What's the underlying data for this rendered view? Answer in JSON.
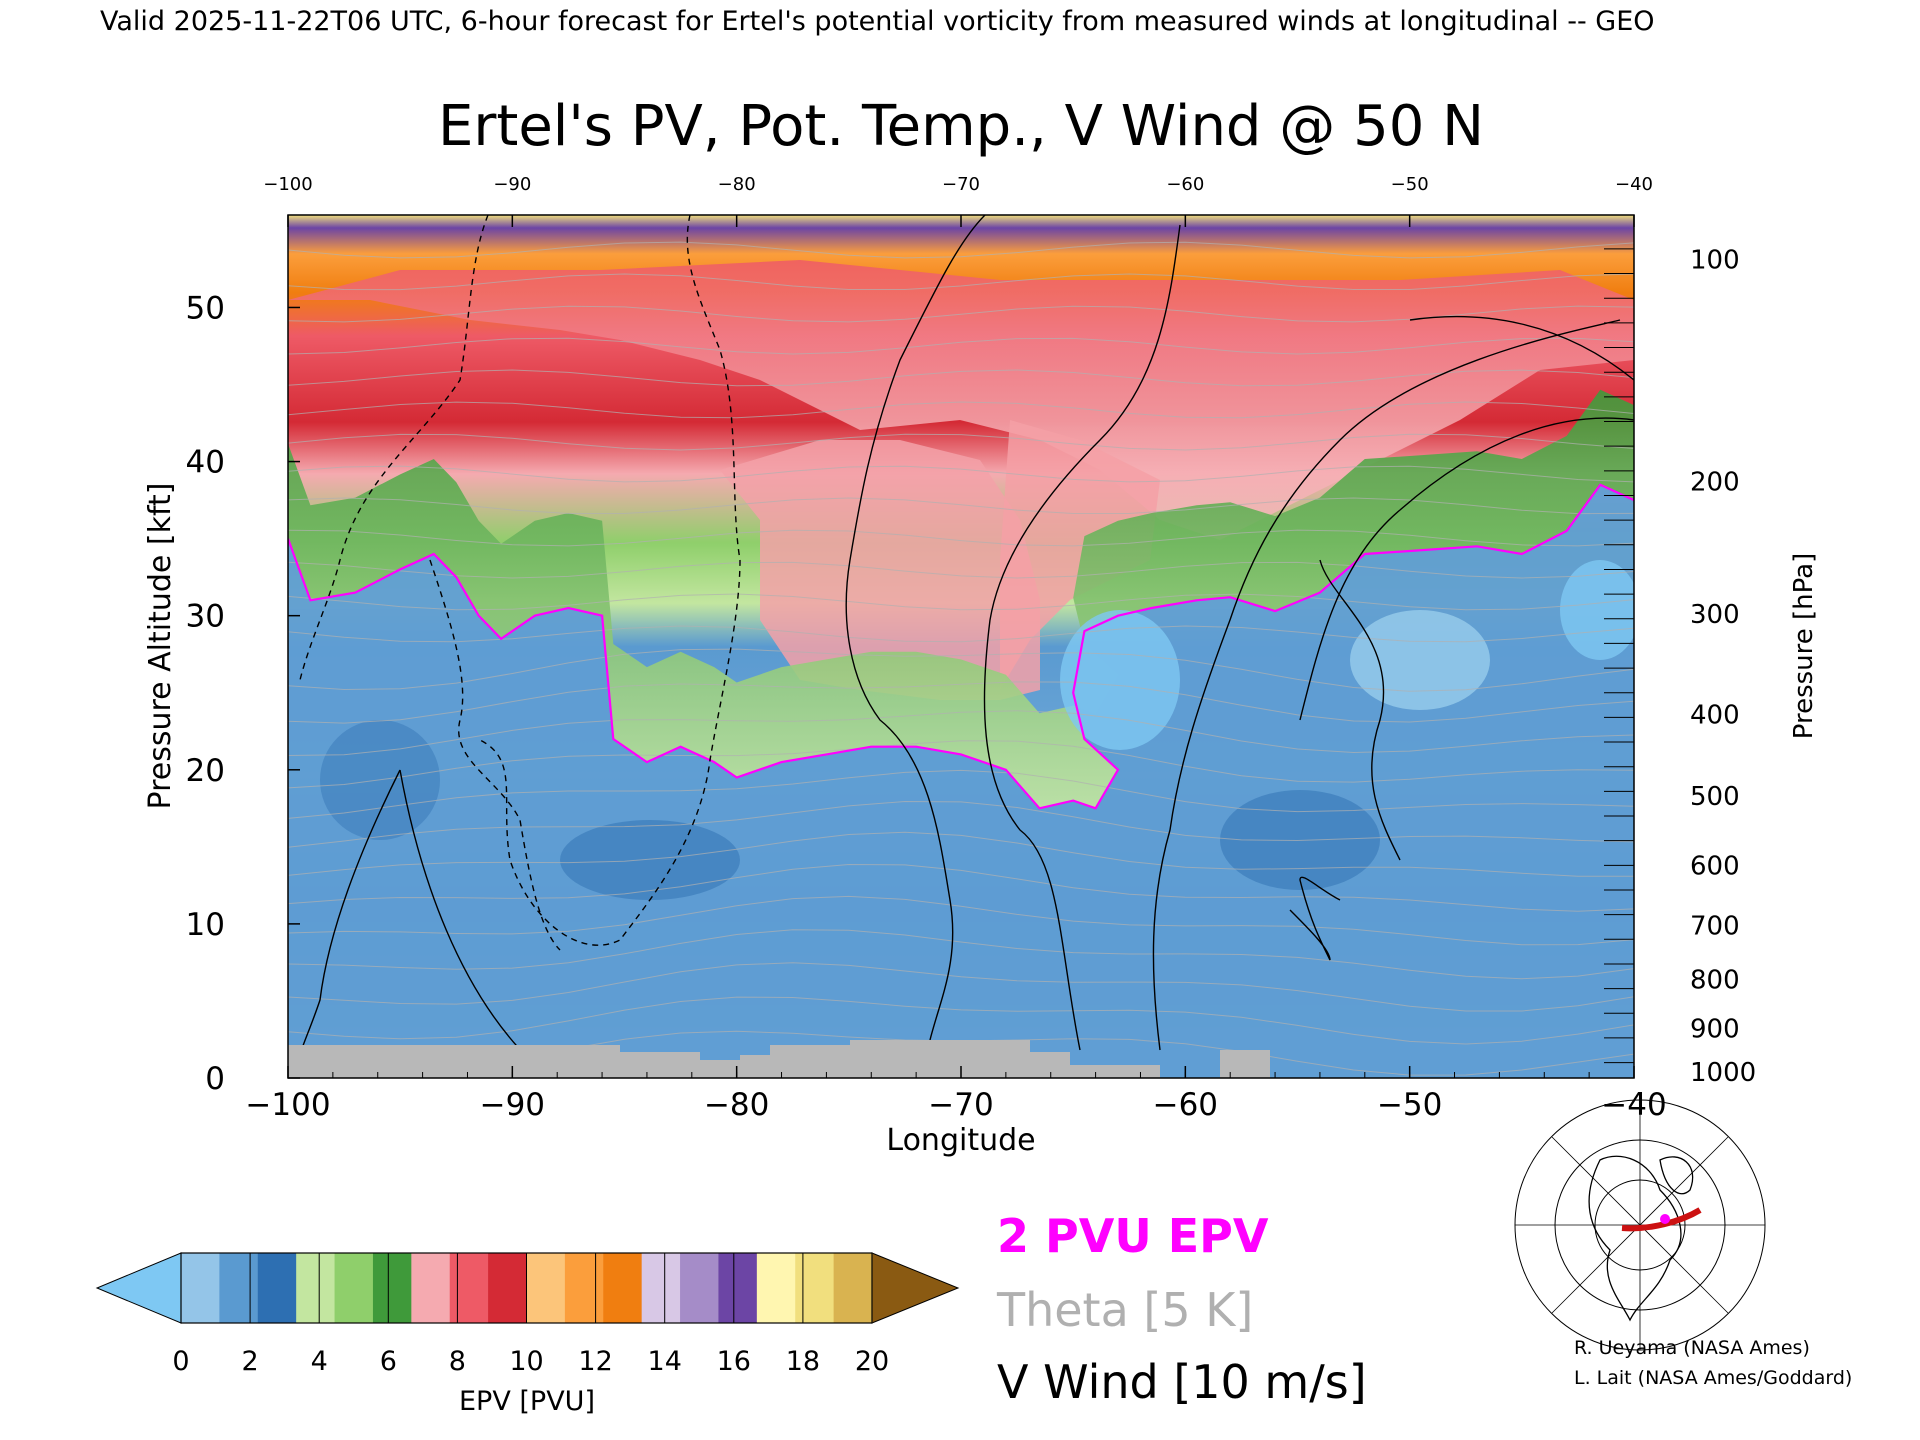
{
  "header": {
    "valid_line": "Valid 2025-11-22T06 UTC, 6-hour forecast for Ertel's potential vorticity from measured winds at longitudinal -- GEO"
  },
  "chart_data": {
    "type": "heatmap",
    "title": "Ertel's PV, Pot. Temp., V Wind @ 50 N",
    "xlabel": "Longitude",
    "ylabel": "Pressure Altitude [kft]",
    "y2label": "Pressure [hPa]",
    "xlim": [
      -100,
      -40
    ],
    "ylim": [
      0,
      56
    ],
    "x_ticks": [
      -100,
      -90,
      -80,
      -70,
      -60,
      -50,
      -40
    ],
    "x_tick_labels": [
      "−100",
      "−90",
      "−80",
      "−70",
      "−60",
      "−50",
      "−40"
    ],
    "top_tick_labels": [
      "−100",
      "−90",
      "−80",
      "−70",
      "−60",
      "−50",
      "−40"
    ],
    "y_ticks": [
      0,
      10,
      20,
      30,
      40,
      50
    ],
    "pressure_ticks": [
      {
        "label": "100",
        "kft": 53.1
      },
      {
        "label": "200",
        "kft": 38.7
      },
      {
        "label": "300",
        "kft": 30.1
      },
      {
        "label": "400",
        "kft": 23.6
      },
      {
        "label": "500",
        "kft": 18.3
      },
      {
        "label": "600",
        "kft": 13.8
      },
      {
        "label": "700",
        "kft": 9.9
      },
      {
        "label": "800",
        "kft": 6.4
      },
      {
        "label": "900",
        "kft": 3.2
      },
      {
        "label": "1000",
        "kft": 0.4
      }
    ],
    "tropopause_2pvu_kft": [
      [
        -100,
        35
      ],
      [
        -99,
        31
      ],
      [
        -97,
        31.5
      ],
      [
        -95,
        33
      ],
      [
        -93.5,
        34
      ],
      [
        -92.5,
        32.5
      ],
      [
        -91.5,
        30
      ],
      [
        -90.5,
        28.5
      ],
      [
        -89,
        30
      ],
      [
        -87.5,
        30.5
      ],
      [
        -86,
        30
      ],
      [
        -85.5,
        22
      ],
      [
        -84,
        20.5
      ],
      [
        -82.5,
        21.5
      ],
      [
        -81,
        20.5
      ],
      [
        -80,
        19.5
      ],
      [
        -78,
        20.5
      ],
      [
        -76,
        21
      ],
      [
        -74,
        21.5
      ],
      [
        -72,
        21.5
      ],
      [
        -70,
        21
      ],
      [
        -68,
        20
      ],
      [
        -66.5,
        17.5
      ],
      [
        -65,
        18
      ],
      [
        -64,
        17.5
      ],
      [
        -63,
        20
      ],
      [
        -64.5,
        22
      ],
      [
        -65,
        25
      ],
      [
        -64.5,
        29
      ],
      [
        -63,
        30
      ],
      [
        -61.5,
        30.5
      ],
      [
        -59.5,
        31
      ],
      [
        -58,
        31.2
      ],
      [
        -56,
        30.3
      ],
      [
        -54,
        31.5
      ],
      [
        -52,
        34
      ],
      [
        -50,
        34.2
      ],
      [
        -47,
        34.5
      ],
      [
        -45,
        34
      ],
      [
        -43,
        35.5
      ],
      [
        -41.5,
        38.5
      ],
      [
        -40,
        37.5
      ]
    ],
    "colorbar": {
      "label": "EPV [PVU]",
      "ticks": [
        "0",
        "2",
        "4",
        "6",
        "8",
        "10",
        "12",
        "14",
        "16",
        "18",
        "20"
      ],
      "colors": [
        "#94c5e8",
        "#5a9ad0",
        "#2d6fb2",
        "#c3e6a0",
        "#8fcf6b",
        "#3f9a3a",
        "#f5aab0",
        "#ee5a66",
        "#d42a35",
        "#fcc57a",
        "#fb9e3c",
        "#f07e10",
        "#d8c8e6",
        "#a58cc8",
        "#6c45a5",
        "#fff6b0",
        "#f1df7e",
        "#d9b350"
      ],
      "under_color": "#7ec8f3",
      "over_color": "#8a5a12"
    },
    "legend": [
      {
        "text": "2 PVU EPV",
        "color": "#ff00ff"
      },
      {
        "text": "Theta [5 K]",
        "color": "#b0b0b0"
      },
      {
        "text": "V Wind [10 m/s]",
        "color": "#000000"
      }
    ],
    "inset_map": "Northern-hemisphere map with 50 N cross-section marked",
    "credits": [
      "R. Ueyama (NASA Ames)",
      "L. Lait (NASA Ames/Goddard)"
    ]
  }
}
